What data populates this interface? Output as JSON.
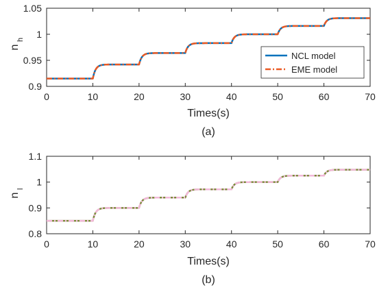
{
  "chart_data": [
    {
      "type": "line",
      "panel_label": "(a)",
      "xlabel": "Times(s)",
      "ylabel_main": "n",
      "ylabel_sub": "h",
      "xlim": [
        0,
        70
      ],
      "ylim": [
        0.9,
        1.05
      ],
      "xticks": [
        0,
        10,
        20,
        30,
        40,
        50,
        60,
        70
      ],
      "yticks": [
        0.9,
        0.95,
        1,
        1.05
      ],
      "ytick_labels": [
        "0.9",
        "0.95",
        "1",
        "1.05"
      ],
      "grid": false,
      "legend_position": "bottom-right",
      "step_times": [
        10,
        20,
        30,
        40,
        50,
        60
      ],
      "levels": [
        0.915,
        0.942,
        0.964,
        0.983,
        1.0,
        1.016,
        1.031
      ],
      "series": [
        {
          "name": "NCL model",
          "color": "#0072BD",
          "style": "solid",
          "values": [
            0.915,
            0.942,
            0.964,
            0.983,
            1.0,
            1.016,
            1.031
          ]
        },
        {
          "name": "EME model",
          "color": "#EA5A24",
          "style": "dashdot",
          "values": [
            0.915,
            0.942,
            0.964,
            0.983,
            1.0,
            1.016,
            1.031
          ]
        }
      ]
    },
    {
      "type": "line",
      "panel_label": "(b)",
      "xlabel": "Times(s)",
      "ylabel_main": "n",
      "ylabel_sub": "l",
      "xlim": [
        0,
        70
      ],
      "ylim": [
        0.8,
        1.1
      ],
      "xticks": [
        0,
        10,
        20,
        30,
        40,
        50,
        60,
        70
      ],
      "yticks": [
        0.8,
        0.9,
        1,
        1.1
      ],
      "ytick_labels": [
        "0.8",
        "0.9",
        "1",
        "1.1"
      ],
      "grid": false,
      "step_times": [
        10,
        20,
        30,
        40,
        50,
        60
      ],
      "levels": [
        0.85,
        0.9,
        0.94,
        0.972,
        1.0,
        1.025,
        1.048
      ],
      "series": [
        {
          "color": "#7A8A3A",
          "style": "solid",
          "values": [
            0.85,
            0.9,
            0.94,
            0.972,
            1.0,
            1.025,
            1.048
          ]
        },
        {
          "color": "#F2B8D8",
          "style": "dashdot",
          "values": [
            0.85,
            0.9,
            0.94,
            0.972,
            1.0,
            1.025,
            1.048
          ]
        }
      ]
    }
  ]
}
